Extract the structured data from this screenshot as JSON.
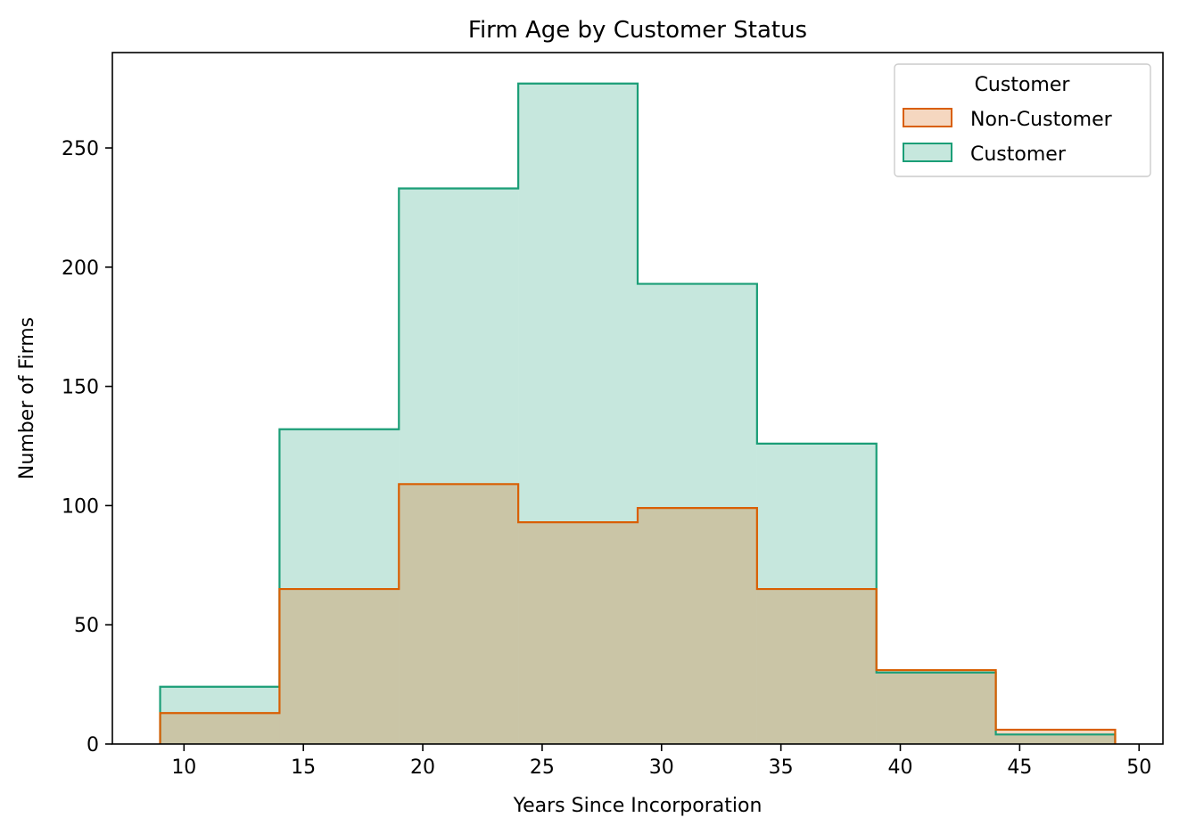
{
  "chart_data": {
    "type": "histogram",
    "title": "Firm Age by Customer Status",
    "xlabel": "Years Since Incorporation",
    "ylabel": "Number of Firms",
    "xlim": [
      7,
      51
    ],
    "ylim": [
      0,
      290
    ],
    "x_ticks": [
      10,
      15,
      20,
      25,
      30,
      35,
      40,
      45,
      50
    ],
    "y_ticks": [
      0,
      50,
      100,
      150,
      200,
      250
    ],
    "bin_edges": [
      9,
      14,
      19,
      24,
      29,
      34,
      39,
      44,
      49
    ],
    "grid": false,
    "legend": {
      "title": "Customer",
      "placement": "top-right"
    },
    "series": [
      {
        "name": "Customer",
        "values": [
          24,
          132,
          233,
          277,
          193,
          126,
          30,
          4
        ],
        "edge_color": "#1b9e77",
        "fill_color": "#1b9e77"
      },
      {
        "name": "Non-Customer",
        "values": [
          13,
          65,
          109,
          93,
          99,
          65,
          31,
          6
        ],
        "edge_color": "#d95f02",
        "fill_color": "#d95f02"
      }
    ]
  }
}
